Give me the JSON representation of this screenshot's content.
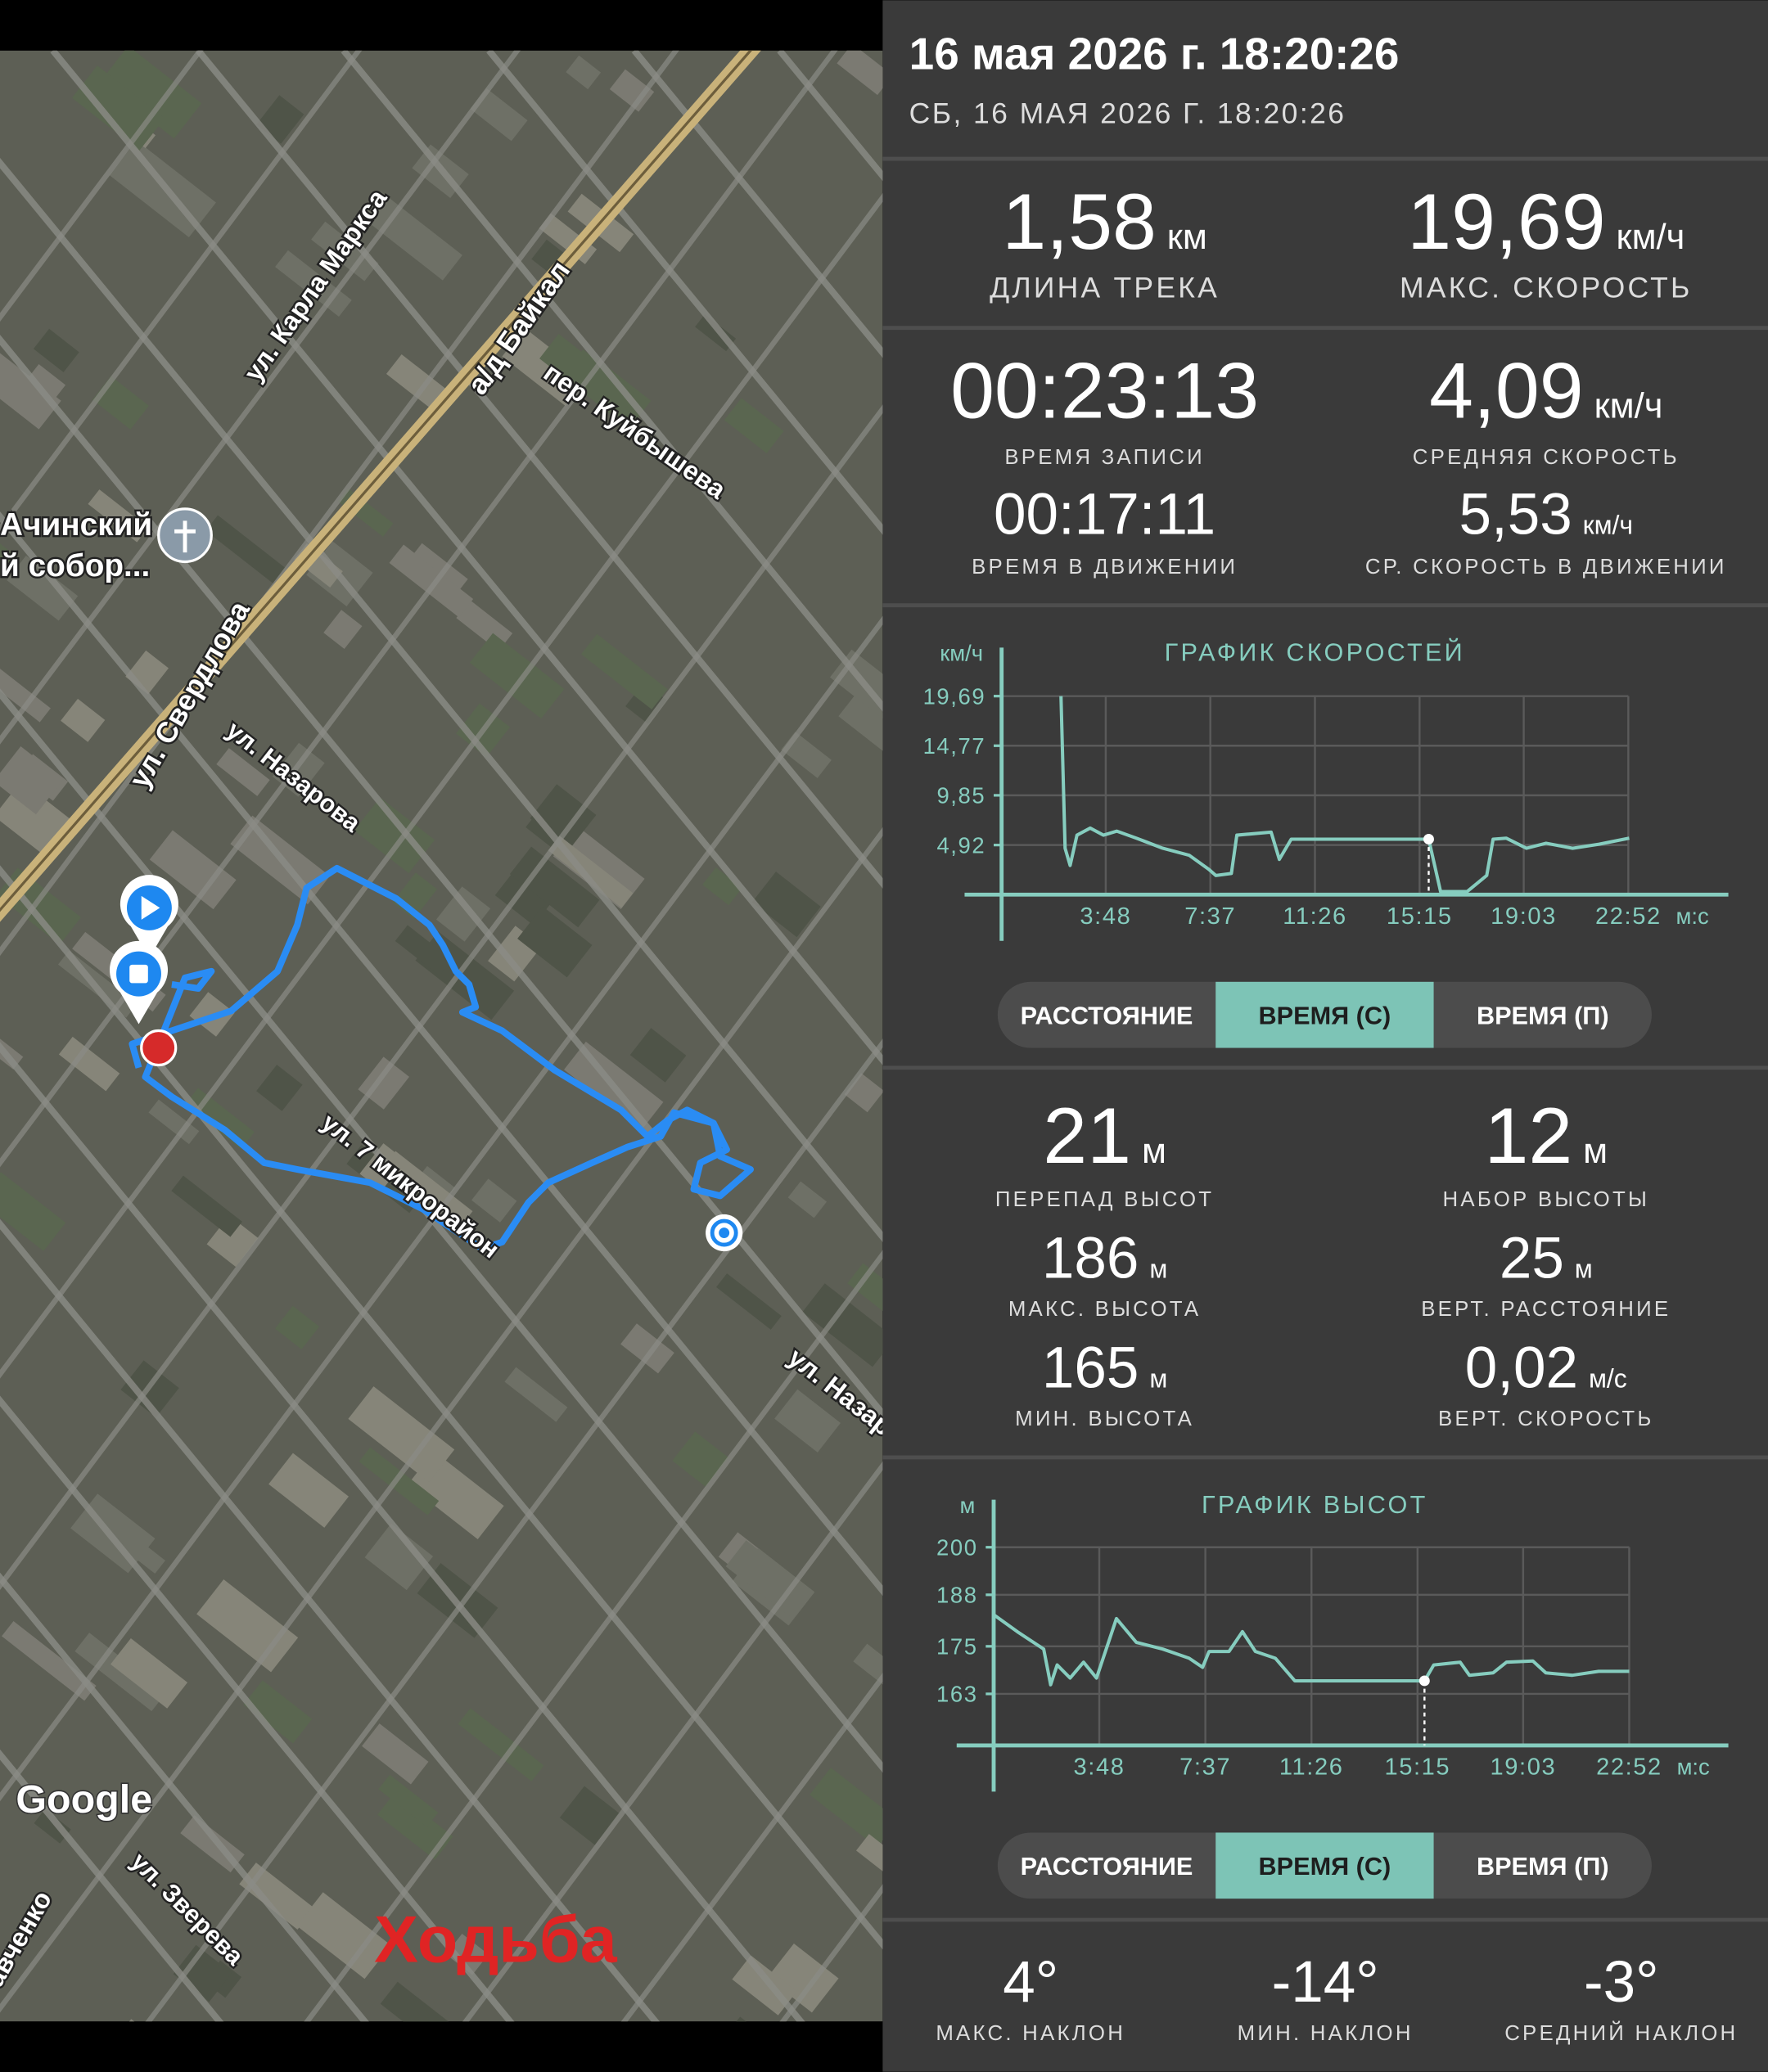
{
  "header": {
    "title": "16 мая 2026 г. 18:20:26",
    "subtitle": "СБ, 16 МАЯ 2026 Г. 18:20:26"
  },
  "map": {
    "labels": [
      "ул. Карла Маркса",
      "а/д Байкал",
      "пер. Куйбышева",
      "Ачинский",
      "й собор...",
      "ул. Свердлова",
      "ул. Назарова",
      "ул. 7 микрорайон",
      "ул. Назаро",
      "авченко",
      "ул. Зверева"
    ],
    "attribution": "Google",
    "activity": "Ходьба"
  },
  "stats": [
    {
      "value": "1,58",
      "unit": "км",
      "label": "ДЛИНА ТРЕКА"
    },
    {
      "value": "19,69",
      "unit": "км/ч",
      "label": "МАКС. СКОРОСТЬ"
    },
    {
      "value": "00:23:13",
      "label": "ВРЕМЯ ЗАПИСИ"
    },
    {
      "value": "4,09",
      "unit": "км/ч",
      "label": "СРЕДНЯЯ СКОРОСТЬ"
    },
    {
      "value": "00:17:11",
      "label": "ВРЕМЯ В ДВИЖЕНИИ"
    },
    {
      "value": "5,53",
      "unit": "км/ч",
      "label": "СР. СКОРОСТЬ В ДВИЖЕНИИ"
    }
  ],
  "elevation_stats": [
    {
      "value": "21",
      "unit": "м",
      "label": "ПЕРЕПАД ВЫСОТ"
    },
    {
      "value": "12",
      "unit": "м",
      "label": "НАБОР ВЫСОТЫ"
    },
    {
      "value": "186",
      "unit": "м",
      "label": "МАКС. ВЫСОТА"
    },
    {
      "value": "25",
      "unit": "м",
      "label": "ВЕРТ. РАССТОЯНИЕ"
    },
    {
      "value": "165",
      "unit": "м",
      "label": "МИН. ВЫСОТА"
    },
    {
      "value": "0,02",
      "unit": "м/с",
      "label": "ВЕРТ. СКОРОСТЬ"
    }
  ],
  "slope_stats": [
    {
      "value": "4°",
      "label": "МАКС. НАКЛОН"
    },
    {
      "value": "-14°",
      "label": "МИН. НАКЛОН"
    },
    {
      "value": "-3°",
      "label": "СРЕДНИЙ НАКЛОН"
    }
  ],
  "chart_data": [
    {
      "type": "line",
      "title": "ГРАФИК СКОРОСТЕЙ",
      "y_unit": "км/ч",
      "x_unit": "м:с",
      "color": "#86cdbf",
      "grid": true,
      "x": [
        130,
        139,
        150,
        165,
        194,
        223,
        252,
        295,
        353,
        411,
        454,
        469,
        503,
        515,
        590,
        608,
        634,
        700,
        935,
        961,
        1019,
        1062,
        1076,
        1105,
        1149,
        1192,
        1250,
        1308,
        1374
      ],
      "values": [
        19.69,
        4.6,
        2.9,
        5.9,
        6.6,
        5.9,
        6.3,
        5.6,
        4.6,
        3.9,
        2.5,
        1.9,
        2.1,
        5.9,
        6.2,
        3.5,
        5.5,
        5.5,
        5.5,
        0.3,
        0.3,
        1.9,
        5.5,
        5.6,
        4.6,
        5.1,
        4.6,
        5.0,
        5.6
      ],
      "highlight_point": 18,
      "xlim": [
        0,
        1591
      ],
      "ylim": [
        0,
        24.5
      ],
      "xticks": [
        {
          "value": 228,
          "label": "3:48"
        },
        {
          "value": 457,
          "label": "7:37"
        },
        {
          "value": 686,
          "label": "11:26"
        },
        {
          "value": 915,
          "label": "15:15"
        },
        {
          "value": 1143,
          "label": "19:03"
        },
        {
          "value": 1372,
          "label": "22:52"
        }
      ],
      "yticks": [
        {
          "value": 4.92,
          "label": "4,92"
        },
        {
          "value": 9.85,
          "label": "9,85"
        },
        {
          "value": 14.77,
          "label": "14,77"
        },
        {
          "value": 19.69,
          "label": "19,69"
        }
      ],
      "controls": {
        "options": [
          "РАССТОЯНИЕ",
          "ВРЕМЯ (С)",
          "ВРЕМЯ (П)"
        ],
        "selected": 1
      }
    },
    {
      "type": "line",
      "title": "ГРАФИК ВЫСОТ",
      "y_unit": "м",
      "x_unit": "м:с",
      "color": "#86cdbf",
      "grid": true,
      "x": [
        0,
        51,
        108,
        123,
        137,
        165,
        194,
        222,
        265,
        308,
        365,
        422,
        451,
        465,
        508,
        537,
        565,
        608,
        650,
        707,
        930,
        950,
        1007,
        1027,
        1078,
        1107,
        1164,
        1192,
        1249,
        1306,
        1372
      ],
      "values": [
        183,
        178.7,
        174.3,
        165.3,
        170.3,
        167,
        171,
        167,
        182,
        176,
        174.3,
        172,
        169.7,
        173.7,
        173.7,
        178.7,
        173.7,
        172,
        166.3,
        166.3,
        166.3,
        170.3,
        171,
        167.7,
        168.3,
        171,
        171.3,
        168.3,
        167.7,
        168.7,
        168.7
      ],
      "highlight_point": 20,
      "xlim": [
        0,
        1586
      ],
      "ylim": [
        150,
        212
      ],
      "xticks": [
        {
          "value": 228,
          "label": "3:48"
        },
        {
          "value": 457,
          "label": "7:37"
        },
        {
          "value": 686,
          "label": "11:26"
        },
        {
          "value": 915,
          "label": "15:15"
        },
        {
          "value": 1143,
          "label": "19:03"
        },
        {
          "value": 1372,
          "label": "22:52"
        }
      ],
      "yticks": [
        163,
        175,
        188,
        200
      ],
      "controls": {
        "options": [
          "РАССТОЯНИЕ",
          "ВРЕМЯ (С)",
          "ВРЕМЯ (П)"
        ],
        "selected": 1
      }
    }
  ]
}
